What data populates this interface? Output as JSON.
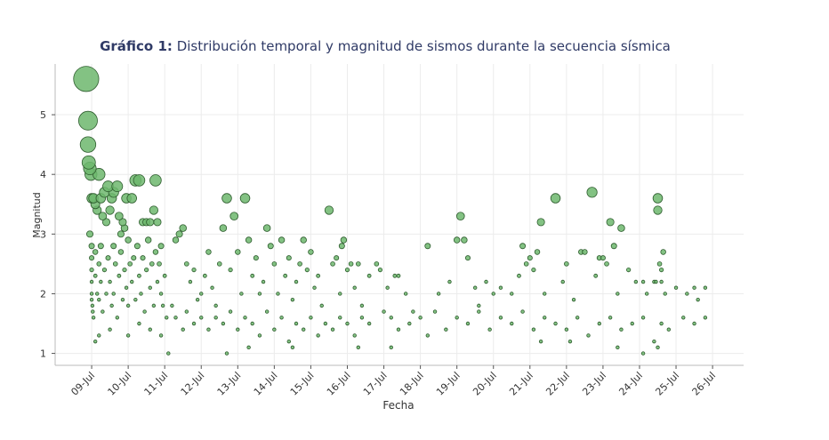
{
  "chart_data": {
    "type": "scatter",
    "title_prefix": "Gráfico 1:",
    "title": "Distribución temporal y magnitud de sismos durante la secuencia sísmica",
    "xlabel": "Fecha",
    "ylabel": "Magnitud",
    "x_ticks": [
      "09-Jul",
      "10-Jul",
      "11-Jul",
      "12-Jul",
      "13-Jul",
      "14-Jul",
      "15-Jul",
      "16-Jul",
      "17-Jul",
      "18-Jul",
      "19-Jul",
      "20-Jul",
      "21-Jul",
      "22-Jul",
      "23-Jul",
      "24-Jul",
      "25-Jul",
      "26-Jul"
    ],
    "y_ticks": [
      "1",
      "2",
      "3",
      "4",
      "5"
    ],
    "xlim": [
      "08-Jul 12:00",
      "26-Jul 12:00"
    ],
    "ylim": [
      0.8,
      5.85
    ],
    "grid": true,
    "marker_color": "#6db76d",
    "marker_edge": "#2e5c2e",
    "marker_size": "proportional to magnitude",
    "points": [
      [
        8.85,
        5.6
      ],
      [
        8.9,
        4.9
      ],
      [
        8.9,
        4.5
      ],
      [
        8.92,
        4.2
      ],
      [
        8.95,
        4.1
      ],
      [
        8.98,
        4.0
      ],
      [
        9.0,
        3.6
      ],
      [
        9.05,
        3.6
      ],
      [
        9.1,
        3.5
      ],
      [
        9.15,
        3.4
      ],
      [
        9.2,
        4.0
      ],
      [
        9.25,
        3.6
      ],
      [
        9.3,
        3.3
      ],
      [
        9.35,
        3.7
      ],
      [
        9.4,
        3.2
      ],
      [
        9.45,
        3.8
      ],
      [
        9.5,
        3.4
      ],
      [
        9.55,
        3.6
      ],
      [
        9.6,
        3.7
      ],
      [
        9.7,
        3.8
      ],
      [
        9.75,
        3.3
      ],
      [
        9.8,
        3.0
      ],
      [
        9.85,
        3.2
      ],
      [
        9.9,
        3.1
      ],
      [
        9.95,
        3.6
      ],
      [
        10.1,
        3.6
      ],
      [
        10.2,
        3.9
      ],
      [
        10.3,
        3.9
      ],
      [
        10.4,
        3.2
      ],
      [
        10.5,
        3.2
      ],
      [
        10.6,
        3.2
      ],
      [
        10.7,
        3.4
      ],
      [
        10.75,
        3.9
      ],
      [
        10.8,
        3.2
      ],
      [
        10.9,
        2.8
      ],
      [
        8.95,
        3.0
      ],
      [
        9.0,
        2.8
      ],
      [
        9.0,
        2.6
      ],
      [
        9.0,
        2.4
      ],
      [
        9.0,
        2.2
      ],
      [
        9.0,
        2.0
      ],
      [
        9.0,
        1.9
      ],
      [
        9.02,
        1.8
      ],
      [
        9.03,
        1.7
      ],
      [
        9.05,
        1.6
      ],
      [
        9.1,
        2.7
      ],
      [
        9.1,
        2.3
      ],
      [
        9.15,
        2.0
      ],
      [
        9.2,
        2.5
      ],
      [
        9.2,
        1.9
      ],
      [
        9.25,
        2.8
      ],
      [
        9.25,
        2.2
      ],
      [
        9.3,
        1.7
      ],
      [
        9.35,
        2.4
      ],
      [
        9.4,
        2.0
      ],
      [
        9.45,
        2.6
      ],
      [
        9.5,
        2.2
      ],
      [
        9.55,
        1.8
      ],
      [
        9.6,
        2.8
      ],
      [
        9.6,
        2.0
      ],
      [
        9.65,
        2.5
      ],
      [
        9.7,
        1.6
      ],
      [
        9.75,
        2.3
      ],
      [
        9.8,
        2.7
      ],
      [
        9.85,
        1.9
      ],
      [
        9.9,
        2.4
      ],
      [
        9.95,
        2.1
      ],
      [
        10.0,
        2.9
      ],
      [
        10.0,
        1.8
      ],
      [
        10.05,
        2.5
      ],
      [
        10.1,
        2.2
      ],
      [
        10.15,
        2.6
      ],
      [
        10.2,
        1.9
      ],
      [
        10.25,
        2.8
      ],
      [
        10.3,
        2.3
      ],
      [
        10.35,
        2.0
      ],
      [
        10.4,
        2.6
      ],
      [
        10.45,
        1.7
      ],
      [
        10.5,
        2.4
      ],
      [
        10.55,
        2.9
      ],
      [
        10.6,
        2.1
      ],
      [
        10.65,
        2.5
      ],
      [
        10.7,
        1.8
      ],
      [
        10.75,
        2.7
      ],
      [
        10.8,
        2.2
      ],
      [
        10.85,
        2.5
      ],
      [
        10.9,
        2.0
      ],
      [
        10.95,
        1.8
      ],
      [
        11.0,
        2.3
      ],
      [
        11.05,
        1.6
      ],
      [
        11.3,
        2.9
      ],
      [
        11.4,
        3.0
      ],
      [
        11.5,
        3.1
      ],
      [
        11.6,
        2.5
      ],
      [
        11.7,
        2.2
      ],
      [
        11.8,
        2.4
      ],
      [
        11.9,
        1.9
      ],
      [
        12.0,
        2.0
      ],
      [
        12.1,
        2.3
      ],
      [
        12.2,
        2.7
      ],
      [
        12.3,
        2.1
      ],
      [
        12.4,
        1.8
      ],
      [
        12.5,
        2.5
      ],
      [
        12.6,
        3.1
      ],
      [
        12.7,
        3.6
      ],
      [
        12.8,
        2.4
      ],
      [
        12.9,
        3.3
      ],
      [
        13.0,
        2.7
      ],
      [
        13.1,
        2.0
      ],
      [
        13.2,
        3.6
      ],
      [
        13.3,
        2.9
      ],
      [
        13.4,
        2.3
      ],
      [
        13.5,
        2.6
      ],
      [
        13.6,
        2.0
      ],
      [
        13.7,
        2.2
      ],
      [
        13.8,
        3.1
      ],
      [
        13.9,
        2.8
      ],
      [
        14.0,
        2.5
      ],
      [
        14.1,
        2.0
      ],
      [
        14.2,
        2.9
      ],
      [
        14.3,
        2.3
      ],
      [
        14.4,
        2.6
      ],
      [
        14.5,
        1.9
      ],
      [
        14.6,
        2.2
      ],
      [
        14.7,
        2.5
      ],
      [
        14.8,
        2.9
      ],
      [
        14.9,
        2.4
      ],
      [
        15.0,
        2.7
      ],
      [
        15.1,
        2.1
      ],
      [
        15.2,
        2.3
      ],
      [
        15.3,
        1.8
      ],
      [
        15.5,
        3.4
      ],
      [
        15.6,
        2.5
      ],
      [
        15.7,
        2.6
      ],
      [
        15.8,
        2.0
      ],
      [
        15.85,
        2.8
      ],
      [
        15.9,
        2.9
      ],
      [
        16.0,
        2.4
      ],
      [
        16.1,
        2.5
      ],
      [
        16.2,
        2.1
      ],
      [
        16.3,
        2.5
      ],
      [
        16.4,
        1.8
      ],
      [
        16.6,
        2.3
      ],
      [
        16.8,
        2.5
      ],
      [
        16.9,
        2.4
      ],
      [
        17.1,
        2.1
      ],
      [
        17.3,
        2.3
      ],
      [
        17.4,
        2.3
      ],
      [
        17.6,
        2.0
      ],
      [
        17.8,
        1.7
      ],
      [
        18.2,
        2.8
      ],
      [
        18.5,
        2.0
      ],
      [
        18.8,
        2.2
      ],
      [
        19.0,
        2.9
      ],
      [
        19.1,
        3.3
      ],
      [
        19.2,
        2.9
      ],
      [
        19.3,
        2.6
      ],
      [
        19.5,
        2.1
      ],
      [
        19.6,
        1.8
      ],
      [
        19.8,
        2.2
      ],
      [
        20.0,
        2.0
      ],
      [
        20.2,
        2.1
      ],
      [
        20.5,
        2.0
      ],
      [
        20.7,
        2.3
      ],
      [
        20.8,
        2.8
      ],
      [
        20.9,
        2.5
      ],
      [
        21.0,
        2.6
      ],
      [
        21.1,
        2.4
      ],
      [
        21.2,
        2.7
      ],
      [
        21.3,
        3.2
      ],
      [
        21.4,
        2.0
      ],
      [
        21.7,
        3.6
      ],
      [
        21.9,
        2.2
      ],
      [
        22.0,
        2.5
      ],
      [
        22.2,
        1.9
      ],
      [
        22.4,
        2.7
      ],
      [
        22.5,
        2.7
      ],
      [
        22.7,
        3.7
      ],
      [
        22.8,
        2.3
      ],
      [
        22.9,
        2.6
      ],
      [
        23.0,
        2.6
      ],
      [
        23.1,
        2.5
      ],
      [
        23.2,
        3.2
      ],
      [
        23.3,
        2.8
      ],
      [
        23.4,
        2.0
      ],
      [
        23.5,
        3.1
      ],
      [
        23.7,
        2.4
      ],
      [
        23.9,
        2.2
      ],
      [
        24.1,
        2.2
      ],
      [
        24.2,
        2.0
      ],
      [
        24.4,
        2.2
      ],
      [
        24.45,
        2.2
      ],
      [
        24.5,
        3.6
      ],
      [
        24.5,
        3.4
      ],
      [
        24.55,
        2.5
      ],
      [
        24.6,
        2.4
      ],
      [
        24.6,
        2.2
      ],
      [
        24.65,
        2.7
      ],
      [
        24.7,
        2.0
      ],
      [
        25.0,
        2.1
      ],
      [
        25.3,
        2.0
      ],
      [
        25.5,
        2.1
      ],
      [
        25.6,
        1.9
      ],
      [
        25.8,
        2.1
      ],
      [
        11.2,
        1.8
      ],
      [
        11.3,
        1.6
      ],
      [
        11.5,
        1.4
      ],
      [
        11.6,
        1.7
      ],
      [
        11.8,
        1.5
      ],
      [
        12.0,
        1.6
      ],
      [
        12.2,
        1.4
      ],
      [
        12.4,
        1.6
      ],
      [
        12.6,
        1.5
      ],
      [
        12.8,
        1.7
      ],
      [
        13.0,
        1.4
      ],
      [
        13.2,
        1.6
      ],
      [
        13.4,
        1.5
      ],
      [
        13.6,
        1.3
      ],
      [
        13.8,
        1.7
      ],
      [
        14.0,
        1.4
      ],
      [
        14.2,
        1.6
      ],
      [
        14.4,
        1.2
      ],
      [
        14.6,
        1.5
      ],
      [
        14.8,
        1.4
      ],
      [
        15.0,
        1.6
      ],
      [
        15.2,
        1.3
      ],
      [
        15.4,
        1.5
      ],
      [
        15.6,
        1.4
      ],
      [
        15.8,
        1.6
      ],
      [
        16.0,
        1.5
      ],
      [
        16.2,
        1.3
      ],
      [
        16.4,
        1.6
      ],
      [
        16.6,
        1.5
      ],
      [
        17.0,
        1.7
      ],
      [
        17.2,
        1.6
      ],
      [
        17.4,
        1.4
      ],
      [
        17.7,
        1.5
      ],
      [
        18.0,
        1.6
      ],
      [
        18.2,
        1.3
      ],
      [
        18.4,
        1.7
      ],
      [
        18.7,
        1.4
      ],
      [
        19.0,
        1.6
      ],
      [
        19.3,
        1.5
      ],
      [
        19.6,
        1.7
      ],
      [
        19.9,
        1.4
      ],
      [
        20.2,
        1.6
      ],
      [
        20.5,
        1.5
      ],
      [
        20.8,
        1.7
      ],
      [
        21.1,
        1.4
      ],
      [
        21.4,
        1.6
      ],
      [
        21.7,
        1.5
      ],
      [
        22.0,
        1.4
      ],
      [
        22.3,
        1.6
      ],
      [
        22.6,
        1.3
      ],
      [
        22.9,
        1.5
      ],
      [
        23.2,
        1.6
      ],
      [
        23.5,
        1.4
      ],
      [
        23.8,
        1.5
      ],
      [
        24.1,
        1.6
      ],
      [
        24.4,
        1.2
      ],
      [
        24.6,
        1.5
      ],
      [
        24.8,
        1.4
      ],
      [
        25.2,
        1.6
      ],
      [
        25.5,
        1.5
      ],
      [
        25.8,
        1.6
      ],
      [
        11.1,
        1.0
      ],
      [
        12.7,
        1.0
      ],
      [
        13.3,
        1.1
      ],
      [
        14.5,
        1.1
      ],
      [
        16.3,
        1.1
      ],
      [
        17.2,
        1.1
      ],
      [
        21.3,
        1.2
      ],
      [
        22.1,
        1.2
      ],
      [
        23.4,
        1.1
      ],
      [
        24.1,
        1.0
      ],
      [
        24.5,
        1.1
      ],
      [
        9.1,
        1.2
      ],
      [
        9.2,
        1.3
      ],
      [
        9.5,
        1.4
      ],
      [
        10.0,
        1.3
      ],
      [
        10.3,
        1.5
      ],
      [
        10.6,
        1.4
      ],
      [
        10.9,
        1.3
      ]
    ]
  }
}
